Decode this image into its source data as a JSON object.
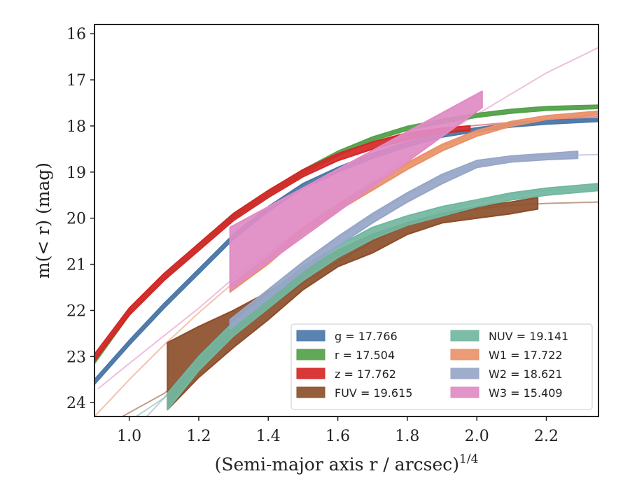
{
  "chart_data": {
    "type": "line",
    "xlabel": "(Semi-major axis r / arcsec)",
    "xlabel_exponent": "1/4",
    "ylabel": "m(< r) (mag)",
    "xlim": [
      0.9,
      2.35
    ],
    "ylim": [
      24.3,
      15.8
    ],
    "y_inverted": true,
    "x_ticks": [
      "1.0",
      "1.2",
      "1.4",
      "1.6",
      "1.8",
      "2.0",
      "2.2"
    ],
    "y_ticks": [
      "16",
      "17",
      "18",
      "19",
      "20",
      "21",
      "22",
      "23",
      "24"
    ],
    "grid": false,
    "legend_position": "lower-right",
    "legend_columns": 2,
    "series": [
      {
        "name": "g = 17.766",
        "color": "#4c78a8",
        "fit_x": [
          0.9,
          1.0,
          1.1,
          1.2,
          1.3,
          1.4,
          1.5,
          1.6,
          1.7,
          1.8,
          1.9,
          2.0,
          2.1,
          2.2,
          2.35
        ],
        "fit_y": [
          23.55,
          22.7,
          21.9,
          21.15,
          20.4,
          19.8,
          19.3,
          18.95,
          18.65,
          18.4,
          18.2,
          18.08,
          17.98,
          17.92,
          17.87
        ],
        "band_x": [
          0.9,
          1.0,
          1.1,
          1.2,
          1.3,
          1.4,
          1.5,
          1.6,
          1.7,
          1.8,
          1.9,
          2.0,
          2.1,
          2.2,
          2.35
        ],
        "band_lo": [
          23.5,
          22.65,
          21.85,
          21.1,
          20.35,
          19.75,
          19.25,
          18.9,
          18.6,
          18.35,
          18.16,
          18.04,
          17.94,
          17.88,
          17.84
        ],
        "band_hi": [
          23.6,
          22.75,
          21.95,
          21.2,
          20.45,
          19.85,
          19.35,
          19.0,
          18.7,
          18.45,
          18.24,
          18.12,
          18.02,
          17.96,
          17.9
        ]
      },
      {
        "name": "r = 17.504",
        "color": "#54a24b",
        "fit_x": [
          0.9,
          1.0,
          1.1,
          1.2,
          1.3,
          1.4,
          1.5,
          1.6,
          1.7,
          1.8,
          1.9,
          2.0,
          2.1,
          2.2,
          2.35
        ],
        "fit_y": [
          23.1,
          22.05,
          21.3,
          20.6,
          19.95,
          19.45,
          19.0,
          18.6,
          18.28,
          18.05,
          17.9,
          17.77,
          17.68,
          17.62,
          17.58
        ],
        "band_x": [
          0.9,
          1.0,
          1.1,
          1.2,
          1.3,
          1.4,
          1.5,
          1.6,
          1.7,
          1.8,
          1.9,
          2.0,
          2.1,
          2.2,
          2.35
        ],
        "band_lo": [
          23.05,
          22.0,
          21.25,
          20.55,
          19.9,
          19.4,
          18.95,
          18.55,
          18.24,
          18.01,
          17.86,
          17.73,
          17.64,
          17.58,
          17.55
        ],
        "band_hi": [
          23.15,
          22.1,
          21.35,
          20.65,
          20.0,
          19.5,
          19.05,
          18.65,
          18.32,
          18.09,
          17.94,
          17.81,
          17.72,
          17.66,
          17.62
        ]
      },
      {
        "name": "z = 17.762",
        "color": "#d62728",
        "fit_x": [
          1.98,
          2.1,
          2.2,
          2.35
        ],
        "fit_y": [
          18.0,
          17.92,
          17.86,
          17.8
        ],
        "band_x": [
          0.9,
          1.0,
          1.1,
          1.2,
          1.3,
          1.4,
          1.5,
          1.6,
          1.7,
          1.8,
          1.9,
          1.98
        ],
        "band_lo": [
          22.95,
          21.95,
          21.2,
          20.55,
          19.9,
          19.4,
          18.95,
          18.6,
          18.35,
          18.15,
          18.05,
          18.0
        ],
        "band_hi": [
          23.1,
          22.1,
          21.35,
          20.7,
          20.05,
          19.55,
          19.1,
          18.75,
          18.5,
          18.3,
          18.15,
          18.1
        ]
      },
      {
        "name": "FUV = 19.615",
        "color": "#8c4f2b",
        "fit_x": [
          0.98,
          1.1,
          1.2,
          1.3,
          1.4,
          1.5,
          1.6,
          1.7,
          1.8,
          1.9,
          2.0,
          2.1,
          2.2,
          2.35
        ],
        "fit_y": [
          24.3,
          23.8,
          23.2,
          22.55,
          21.95,
          21.4,
          20.95,
          20.5,
          20.15,
          19.95,
          19.8,
          19.72,
          19.68,
          19.65
        ],
        "band_x": [
          1.11,
          1.2,
          1.3,
          1.4,
          1.5,
          1.6,
          1.7,
          1.8,
          1.9,
          2.0,
          2.1,
          2.175
        ],
        "band_lo": [
          22.7,
          22.35,
          22.0,
          21.6,
          21.15,
          20.7,
          20.35,
          20.1,
          19.9,
          19.75,
          19.65,
          19.55
        ],
        "band_hi": [
          24.15,
          23.45,
          22.8,
          22.2,
          21.55,
          21.05,
          20.75,
          20.35,
          20.1,
          20.0,
          19.9,
          19.8
        ]
      },
      {
        "name": "NUV = 19.141",
        "color": "#72b7a1",
        "fit_x": [
          1.02,
          1.1,
          1.2,
          1.3,
          1.4,
          1.5,
          1.6,
          1.7,
          1.8,
          1.9,
          2.0,
          2.1,
          2.2,
          2.35
        ],
        "fit_y": [
          24.3,
          23.9,
          23.2,
          22.5,
          21.9,
          21.35,
          20.85,
          20.45,
          20.1,
          19.85,
          19.65,
          19.5,
          19.4,
          19.35
        ],
        "band_x": [
          1.11,
          1.2,
          1.3,
          1.4,
          1.5,
          1.6,
          1.7,
          1.8,
          1.9,
          2.0,
          2.1,
          2.2,
          2.35
        ],
        "band_lo": [
          23.8,
          23.0,
          22.25,
          21.65,
          21.05,
          20.6,
          20.2,
          19.95,
          19.75,
          19.6,
          19.45,
          19.35,
          19.25
        ],
        "band_hi": [
          24.15,
          23.3,
          22.55,
          21.95,
          21.35,
          20.85,
          20.45,
          20.15,
          19.95,
          19.75,
          19.6,
          19.5,
          19.4
        ]
      },
      {
        "name": "W1 = 17.722",
        "color": "#e9926a",
        "fit_x": [
          0.9,
          1.0,
          1.1,
          1.2,
          1.3,
          1.4,
          1.5,
          1.6,
          1.7,
          1.8,
          1.9,
          2.0,
          2.1,
          2.2,
          2.35
        ],
        "fit_y": [
          24.3,
          23.5,
          22.75,
          22.05,
          21.4,
          20.8,
          20.25,
          19.75,
          19.3,
          18.85,
          18.45,
          18.15,
          17.95,
          17.82,
          17.72
        ],
        "band_x": [
          1.29,
          1.4,
          1.5,
          1.6,
          1.7,
          1.8,
          1.9,
          2.0,
          2.1,
          2.2,
          2.35
        ],
        "band_lo": [
          21.45,
          20.85,
          20.2,
          19.7,
          19.25,
          18.8,
          18.4,
          18.1,
          17.9,
          17.78,
          17.68
        ],
        "band_hi": [
          21.6,
          20.99,
          20.34,
          19.84,
          19.39,
          18.94,
          18.54,
          18.22,
          18.0,
          17.86,
          17.76
        ]
      },
      {
        "name": "W2 = 18.621",
        "color": "#97a6c8",
        "fit_x": [
          1.05,
          1.1,
          1.2,
          1.3,
          1.4,
          1.5,
          1.6,
          1.7,
          1.8,
          1.9,
          2.0,
          2.1,
          2.2,
          2.35
        ],
        "fit_y": [
          24.3,
          23.9,
          23.0,
          22.2,
          21.55,
          20.95,
          20.45,
          19.95,
          19.5,
          19.1,
          18.85,
          18.72,
          18.65,
          18.62
        ],
        "band_x": [
          1.29,
          1.4,
          1.5,
          1.6,
          1.7,
          1.8,
          1.9,
          2.0,
          2.1,
          2.2,
          2.29
        ],
        "band_lo": [
          22.2,
          21.55,
          20.95,
          20.4,
          19.9,
          19.45,
          19.05,
          18.75,
          18.65,
          18.6,
          18.55
        ],
        "band_hi": [
          22.4,
          21.75,
          21.15,
          20.6,
          20.1,
          19.65,
          19.25,
          18.9,
          18.78,
          18.73,
          18.7
        ]
      },
      {
        "name": "W3 = 15.409",
        "color": "#e08bc4",
        "fit_x": [
          0.91,
          1.0,
          1.1,
          1.2,
          1.3,
          1.4,
          1.5,
          1.6,
          1.7,
          1.8,
          1.9,
          2.0,
          2.1,
          2.2,
          2.35
        ],
        "fit_y": [
          23.7,
          23.15,
          22.55,
          21.95,
          21.3,
          20.75,
          20.2,
          19.7,
          19.2,
          18.7,
          18.2,
          17.75,
          17.3,
          16.85,
          16.3
        ],
        "band_x": [
          1.29,
          2.015
        ],
        "band_lo": [
          20.2,
          17.25
        ],
        "band_hi": [
          21.55,
          17.6
        ]
      }
    ]
  }
}
